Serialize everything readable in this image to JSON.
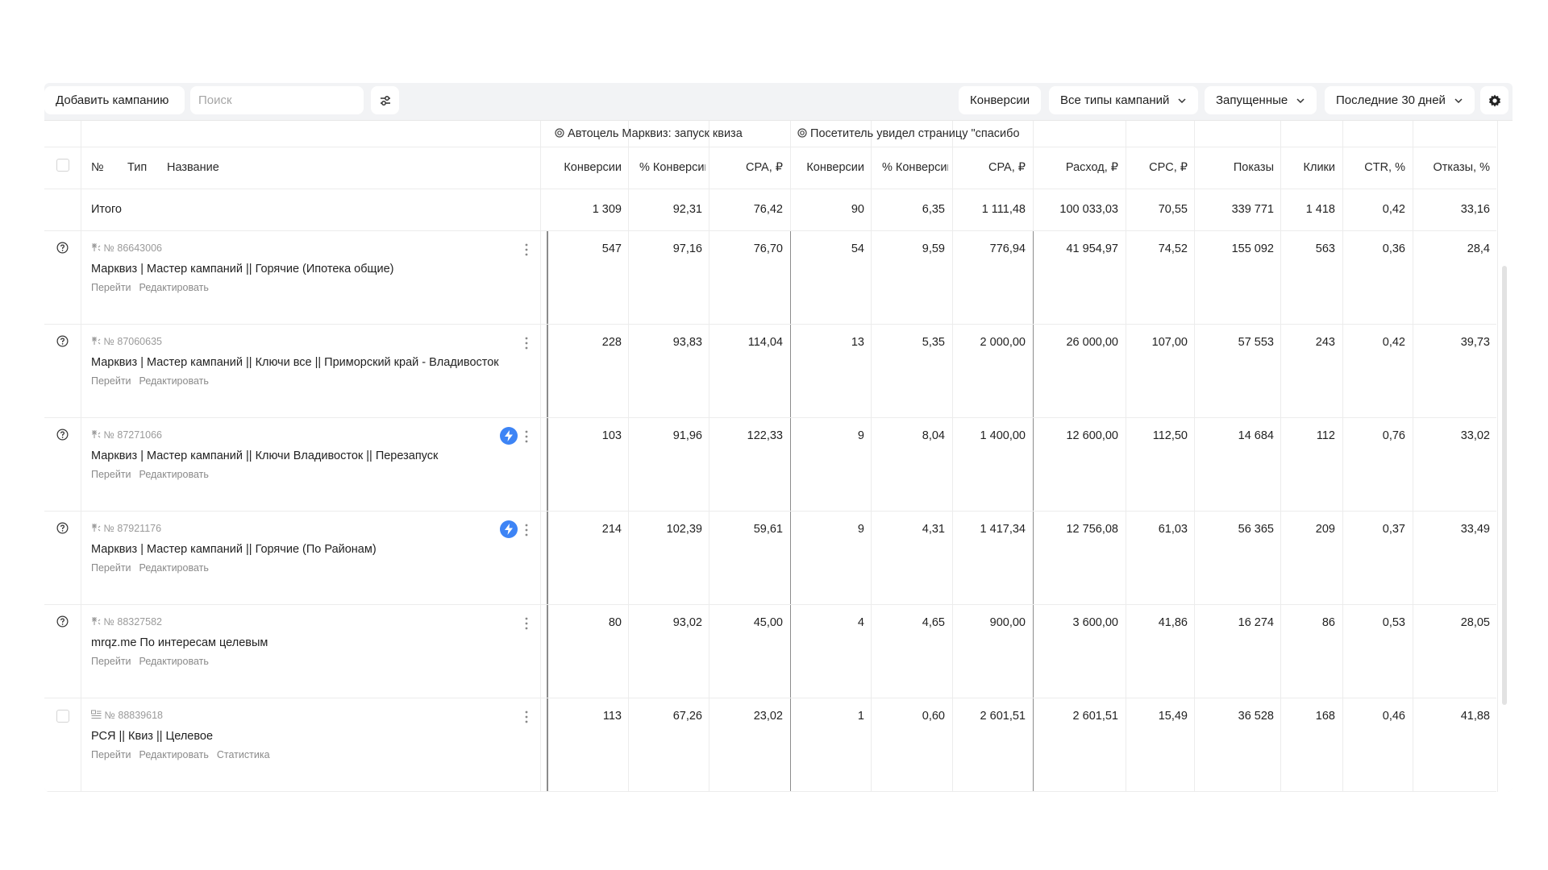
{
  "toolbar": {
    "add_campaign": "Добавить кампанию",
    "search_placeholder": "Поиск",
    "conversions": "Конверсии",
    "campaign_types": "Все типы кампаний",
    "status": "Запущенные",
    "period": "Последние 30 дней"
  },
  "table": {
    "group1": "Автоцель Марквиз: запуск квиза",
    "group2": "Посетитель увидел страницу \"спасибо",
    "headers": {
      "no": "№",
      "type": "Тип",
      "name": "Название",
      "conv1": "Конверсии",
      "pconv1": "% Конверсий",
      "cpa1": "CPA, ₽",
      "conv2": "Конверсии",
      "pconv2": "% Конверсий",
      "cpa2": "CPA, ₽",
      "spend": "Расход, ₽",
      "cpc": "CPC, ₽",
      "impr": "Показы",
      "clicks": "Клики",
      "ctr": "CTR, %",
      "bounce": "Отказы, %"
    },
    "total": {
      "label": "Итого",
      "conv1": "1 309",
      "pconv1": "92,31",
      "cpa1": "76,42",
      "conv2": "90",
      "pconv2": "6,35",
      "cpa2": "1 111,48",
      "spend": "100 033,03",
      "cpc": "70,55",
      "impr": "339 771",
      "clicks": "1 418",
      "ctr": "0,42",
      "bounce": "33,16"
    },
    "links": {
      "go": "Перейти",
      "edit": "Редактировать",
      "stats": "Статистика"
    },
    "rows": [
      {
        "id": "№ 86643006",
        "name": "Марквиз | Мастер кампаний || Горячие (Ипотека общие)",
        "conv1": "547",
        "pconv1": "97,16",
        "cpa1": "76,70",
        "conv2": "54",
        "pconv2": "9,59",
        "cpa2": "776,94",
        "spend": "41 954,97",
        "cpc": "74,52",
        "impr": "155 092",
        "clicks": "563",
        "ctr": "0,36",
        "bounce": "28,4"
      },
      {
        "id": "№ 87060635",
        "name": "Марквиз | Мастер кампаний || Ключи все || Приморский край - Владивосток",
        "conv1": "228",
        "pconv1": "93,83",
        "cpa1": "114,04",
        "conv2": "13",
        "pconv2": "5,35",
        "cpa2": "2 000,00",
        "spend": "26 000,00",
        "cpc": "107,00",
        "impr": "57 553",
        "clicks": "243",
        "ctr": "0,42",
        "bounce": "39,73"
      },
      {
        "id": "№ 87271066",
        "name": "Марквиз | Мастер кампаний || Ключи Владивосток || Перезапуск",
        "conv1": "103",
        "pconv1": "91,96",
        "cpa1": "122,33",
        "conv2": "9",
        "pconv2": "8,04",
        "cpa2": "1 400,00",
        "spend": "12 600,00",
        "cpc": "112,50",
        "impr": "14 684",
        "clicks": "112",
        "ctr": "0,76",
        "bounce": "33,02"
      },
      {
        "id": "№ 87921176",
        "name": "Марквиз | Мастер кампаний || Горячие (По Районам)",
        "conv1": "214",
        "pconv1": "102,39",
        "cpa1": "59,61",
        "conv2": "9",
        "pconv2": "4,31",
        "cpa2": "1 417,34",
        "spend": "12 756,08",
        "cpc": "61,03",
        "impr": "56 365",
        "clicks": "209",
        "ctr": "0,37",
        "bounce": "33,49"
      },
      {
        "id": "№ 88327582",
        "name": "mrqz.me По интересам целевым",
        "conv1": "80",
        "pconv1": "93,02",
        "cpa1": "45,00",
        "conv2": "4",
        "pconv2": "4,65",
        "cpa2": "900,00",
        "spend": "3 600,00",
        "cpc": "41,86",
        "impr": "16 274",
        "clicks": "86",
        "ctr": "0,53",
        "bounce": "28,05"
      },
      {
        "id": "№ 88839618",
        "name": "РСЯ || Квиз || Целевое",
        "conv1": "113",
        "pconv1": "67,26",
        "cpa1": "23,02",
        "conv2": "1",
        "pconv2": "0,60",
        "cpa2": "2 601,51",
        "spend": "2 601,51",
        "cpc": "15,49",
        "impr": "36 528",
        "clicks": "168",
        "ctr": "0,46",
        "bounce": "41,88"
      }
    ]
  }
}
